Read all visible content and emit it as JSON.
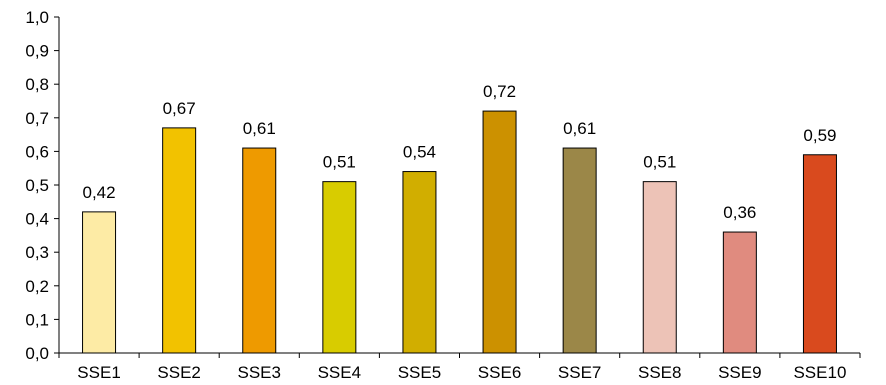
{
  "chart_data": {
    "type": "bar",
    "categories": [
      "SSE1",
      "SSE2",
      "SSE3",
      "SSE4",
      "SSE5",
      "SSE6",
      "SSE7",
      "SSE8",
      "SSE9",
      "SSE10"
    ],
    "values": [
      0.42,
      0.67,
      0.61,
      0.51,
      0.54,
      0.72,
      0.61,
      0.51,
      0.36,
      0.59
    ],
    "data_labels": [
      "0,42",
      "0,67",
      "0,61",
      "0,51",
      "0,54",
      "0,72",
      "0,61",
      "0,51",
      "0,36",
      "0,59"
    ],
    "bar_colors": [
      "#FDEBA5",
      "#F2C200",
      "#EE9A00",
      "#D8CC00",
      "#D1AE00",
      "#CC9100",
      "#9B8748",
      "#EDC3B7",
      "#E08B7F",
      "#D94A1E"
    ],
    "y_ticks": [
      0.0,
      0.1,
      0.2,
      0.3,
      0.4,
      0.5,
      0.6,
      0.7,
      0.8,
      0.9,
      1.0
    ],
    "y_tick_labels": [
      "0,0",
      "0,1",
      "0,2",
      "0,3",
      "0,4",
      "0,5",
      "0,6",
      "0,7",
      "0,8",
      "0,9",
      "1,0"
    ],
    "ylim": [
      0,
      1.0
    ],
    "grid": false,
    "legend": "none",
    "title": "",
    "xlabel": "",
    "ylabel": ""
  }
}
